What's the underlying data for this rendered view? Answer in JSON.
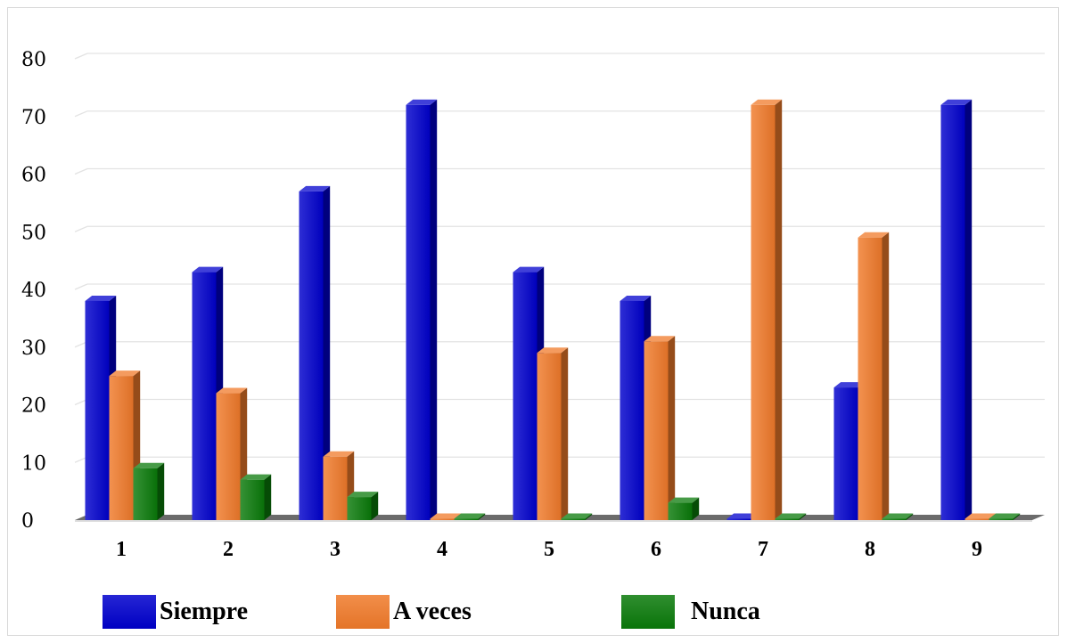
{
  "chart_data": {
    "type": "bar",
    "categories": [
      "1",
      "2",
      "3",
      "4",
      "5",
      "6",
      "7",
      "8",
      "9"
    ],
    "series": [
      {
        "name": "Siempre",
        "color": "#0000cc",
        "values": [
          38,
          43,
          57,
          72,
          43,
          38,
          0,
          23,
          72
        ]
      },
      {
        "name": "A veces",
        "color": "#f07a2a",
        "values": [
          25,
          22,
          11,
          0,
          29,
          31,
          72,
          49,
          0
        ]
      },
      {
        "name": "Nunca",
        "color": "#0a7a0a",
        "values": [
          9,
          7,
          4,
          0,
          0,
          3,
          0,
          0,
          0
        ]
      }
    ],
    "yticks": [
      "0",
      "10",
      "20",
      "30",
      "40",
      "50",
      "60",
      "70",
      "80"
    ],
    "ylim": [
      0,
      80
    ],
    "grid": true,
    "legend_position": "bottom",
    "title": "",
    "xlabel": "",
    "ylabel": ""
  }
}
